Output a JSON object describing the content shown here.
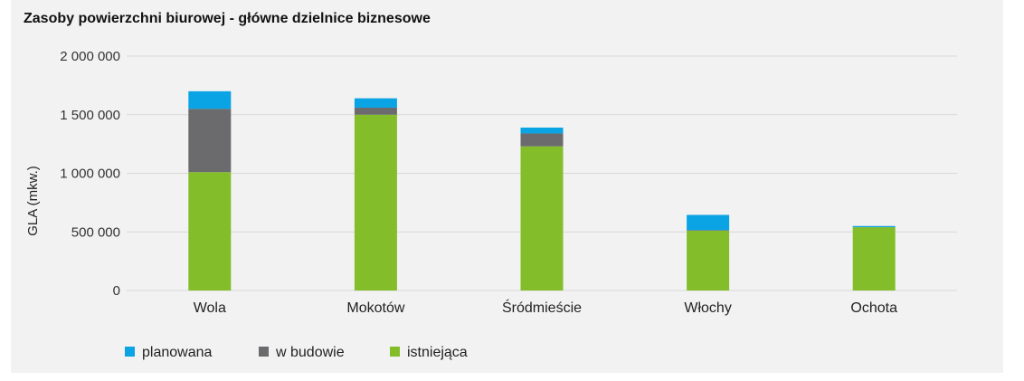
{
  "chart_data": {
    "type": "bar",
    "stacked": true,
    "title": "Zasoby powierzchni biurowej - główne dzielnice biznesowe",
    "xlabel": "",
    "ylabel": "GLA (mkw.)",
    "ylim": [
      0,
      2000000
    ],
    "yticks": [
      0,
      500000,
      1000000,
      1500000,
      2000000
    ],
    "ytick_labels": [
      "0",
      "500 000",
      "1 000 000",
      "1 500 000",
      "2 000 000"
    ],
    "grid": true,
    "legend_position": "bottom-left",
    "categories": [
      "Wola",
      "Mokotów",
      "Śródmieście",
      "Włochy",
      "Ochota"
    ],
    "series": [
      {
        "name": "istniejąca",
        "color": "#84bd2a",
        "values": [
          1010000,
          1500000,
          1230000,
          510000,
          540000
        ]
      },
      {
        "name": "w budowie",
        "color": "#6b6b6e",
        "values": [
          540000,
          60000,
          110000,
          5000,
          0
        ]
      },
      {
        "name": "planowana",
        "color": "#0aa4e4",
        "values": [
          150000,
          80000,
          50000,
          130000,
          10000
        ]
      }
    ],
    "legend_order": [
      "planowana",
      "w budowie",
      "istniejąca"
    ]
  }
}
